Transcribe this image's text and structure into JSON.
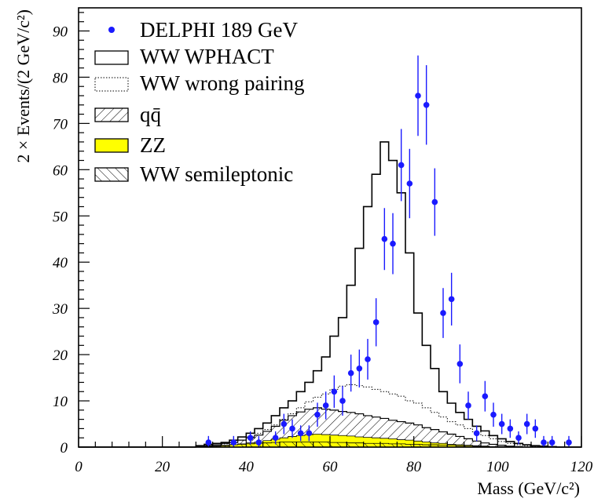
{
  "chart_data": {
    "type": "histogram",
    "xlabel": "Mass (GeV/c²)",
    "ylabel": "2 × Events/(2 GeV/c²)",
    "xlim": [
      0,
      120
    ],
    "ylim": [
      0,
      95
    ],
    "xticks": [
      0,
      20,
      40,
      60,
      80,
      100,
      120
    ],
    "yticks": [
      0,
      10,
      20,
      30,
      40,
      50,
      60,
      70,
      80,
      90
    ],
    "grid": false,
    "legend_position": "top-left",
    "bin_width": 2,
    "bin_start": 0,
    "legend": {
      "data": "DELPHI 189 GeV",
      "wphact": "WW WPHACT",
      "wrong": "WW wrong pairing",
      "qq": "qq̄",
      "zz": "ZZ",
      "semilep": "WW semileptonic"
    },
    "series": {
      "wphact_total": [
        0,
        0,
        0,
        0,
        0,
        0,
        0,
        0,
        0,
        0,
        0,
        0,
        0,
        0,
        0.3,
        0.6,
        0.8,
        1.0,
        1.5,
        2.2,
        3.0,
        4.0,
        5.2,
        6.8,
        8.5,
        10.0,
        12.0,
        14.0,
        16.5,
        19.5,
        24.0,
        28.0,
        35.0,
        43.0,
        52.0,
        59.0,
        66.0,
        62.0,
        55.0,
        42.0,
        29.0,
        22.0,
        17.0,
        12.0,
        9.5,
        7.5,
        6.0,
        4.5,
        3.5,
        2.5,
        1.8,
        1.2,
        0.8,
        0.5,
        0.3,
        0.2,
        0.1,
        0,
        0,
        0
      ],
      "wrong_pairing": [
        0,
        0,
        0,
        0,
        0,
        0,
        0,
        0,
        0,
        0,
        0,
        0,
        0,
        0,
        0.2,
        0.4,
        0.5,
        0.7,
        1.0,
        1.5,
        2.2,
        3.0,
        3.8,
        4.8,
        6.0,
        7.2,
        8.5,
        9.8,
        10.8,
        11.5,
        12.5,
        13.2,
        13.5,
        13.3,
        13.0,
        12.5,
        12.0,
        11.5,
        11.0,
        10.0,
        9.5,
        8.5,
        7.5,
        6.5,
        5.5,
        4.8,
        4.0,
        3.3,
        2.5,
        1.8,
        1.2,
        0.8,
        0.5,
        0.3,
        0.2,
        0.1,
        0,
        0,
        0,
        0
      ],
      "qq": [
        0,
        0,
        0,
        0,
        0,
        0,
        0,
        0,
        0,
        0,
        0,
        0,
        0,
        0,
        0.2,
        0.3,
        0.5,
        0.8,
        1.0,
        1.5,
        2.0,
        2.6,
        3.4,
        4.5,
        5.8,
        6.8,
        7.6,
        8.2,
        8.5,
        8.2,
        8.0,
        7.7,
        7.5,
        7.2,
        6.8,
        6.5,
        6.2,
        5.8,
        5.5,
        5.2,
        4.8,
        4.2,
        3.8,
        3.3,
        2.8,
        2.3,
        1.8,
        1.3,
        0.9,
        0.6,
        0.4,
        0.2,
        0.1,
        0,
        0,
        0,
        0,
        0,
        0,
        0
      ],
      "zz": [
        0,
        0,
        0,
        0,
        0,
        0,
        0,
        0,
        0,
        0,
        0,
        0,
        0,
        0,
        0,
        0.1,
        0.2,
        0.3,
        0.5,
        0.7,
        0.9,
        1.1,
        1.4,
        1.7,
        2.0,
        2.3,
        2.5,
        2.7,
        2.8,
        2.7,
        2.6,
        2.5,
        2.4,
        2.2,
        2.1,
        2.0,
        1.9,
        1.8,
        1.6,
        1.5,
        1.3,
        1.1,
        0.9,
        0.8,
        0.6,
        0.5,
        0.4,
        0.3,
        0.2,
        0.1,
        0,
        0,
        0,
        0,
        0,
        0,
        0,
        0,
        0,
        0
      ],
      "semileptonic": [
        0,
        0,
        0,
        0,
        0,
        0,
        0,
        0,
        0,
        0,
        0,
        0,
        0,
        0,
        0.1,
        0.2,
        0.3,
        0.4,
        0.5,
        0.6,
        0.7,
        0.8,
        0.9,
        1.0,
        1.1,
        1.1,
        1.1,
        1.1,
        1.1,
        1.1,
        1.0,
        1.0,
        0.9,
        0.9,
        0.8,
        0.8,
        0.8,
        0.7,
        0.7,
        0.6,
        0.6,
        0.5,
        0.5,
        0.4,
        0.4,
        0.3,
        0.3,
        0.2,
        0.2,
        0.1,
        0.1,
        0,
        0,
        0,
        0,
        0,
        0,
        0,
        0,
        0
      ]
    },
    "data_points": [
      {
        "x": 31,
        "y": 1,
        "err": 1.4
      },
      {
        "x": 37,
        "y": 1,
        "err": 1.4
      },
      {
        "x": 41,
        "y": 2,
        "err": 1.4
      },
      {
        "x": 43,
        "y": 1,
        "err": 1.4
      },
      {
        "x": 47,
        "y": 2,
        "err": 1.4
      },
      {
        "x": 49,
        "y": 5,
        "err": 2.2
      },
      {
        "x": 51,
        "y": 4,
        "err": 2.0
      },
      {
        "x": 53,
        "y": 3,
        "err": 1.7
      },
      {
        "x": 55,
        "y": 3,
        "err": 1.7
      },
      {
        "x": 57,
        "y": 7,
        "err": 2.6
      },
      {
        "x": 59,
        "y": 9,
        "err": 3.0
      },
      {
        "x": 61,
        "y": 12,
        "err": 3.5
      },
      {
        "x": 63,
        "y": 10,
        "err": 3.2
      },
      {
        "x": 65,
        "y": 16,
        "err": 4.0
      },
      {
        "x": 67,
        "y": 17,
        "err": 4.1
      },
      {
        "x": 69,
        "y": 19,
        "err": 4.4
      },
      {
        "x": 71,
        "y": 27,
        "err": 5.2
      },
      {
        "x": 73,
        "y": 45,
        "err": 6.7
      },
      {
        "x": 75,
        "y": 44,
        "err": 6.6
      },
      {
        "x": 77,
        "y": 61,
        "err": 7.8
      },
      {
        "x": 79,
        "y": 57,
        "err": 7.5
      },
      {
        "x": 81,
        "y": 76,
        "err": 8.7
      },
      {
        "x": 83,
        "y": 74,
        "err": 8.6
      },
      {
        "x": 85,
        "y": 53,
        "err": 7.3
      },
      {
        "x": 87,
        "y": 29,
        "err": 5.4
      },
      {
        "x": 89,
        "y": 32,
        "err": 5.7
      },
      {
        "x": 91,
        "y": 18,
        "err": 4.2
      },
      {
        "x": 93,
        "y": 9,
        "err": 3.0
      },
      {
        "x": 95,
        "y": 3,
        "err": 1.7
      },
      {
        "x": 97,
        "y": 11,
        "err": 3.3
      },
      {
        "x": 99,
        "y": 7,
        "err": 2.6
      },
      {
        "x": 101,
        "y": 5,
        "err": 2.2
      },
      {
        "x": 103,
        "y": 4,
        "err": 2.0
      },
      {
        "x": 105,
        "y": 2,
        "err": 1.4
      },
      {
        "x": 107,
        "y": 5,
        "err": 2.2
      },
      {
        "x": 109,
        "y": 4,
        "err": 2.0
      },
      {
        "x": 111,
        "y": 1,
        "err": 1.4
      },
      {
        "x": 113,
        "y": 1,
        "err": 1.4
      },
      {
        "x": 117,
        "y": 1,
        "err": 1.4
      }
    ],
    "colors": {
      "data": "#1a1aff",
      "zz_fill": "#ffff00",
      "hist_line": "#000000"
    }
  }
}
